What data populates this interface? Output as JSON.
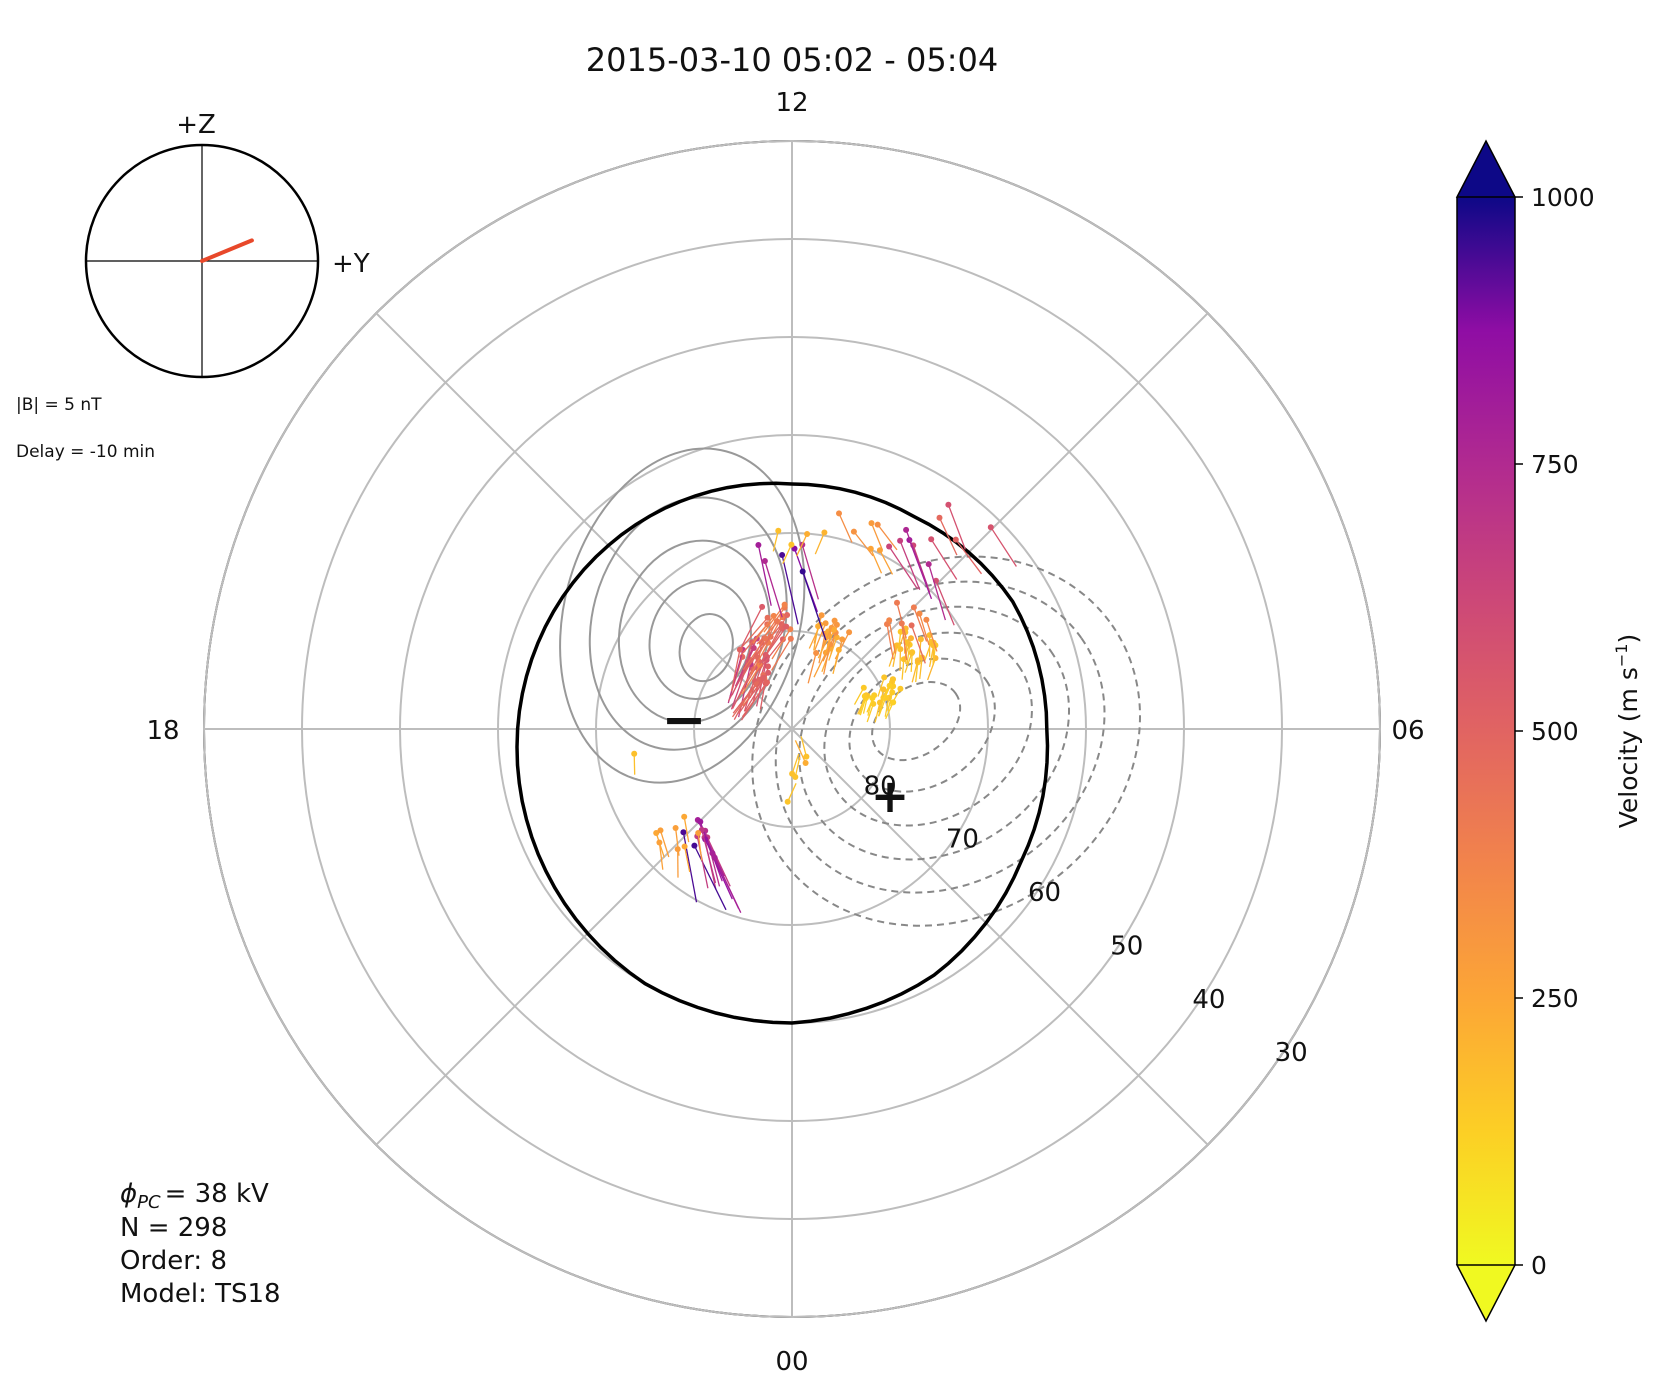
{
  "chart_data": {
    "type": "polar-convection-map",
    "title": "2015-03-10 05:02 - 05:04",
    "mlt_labels": {
      "top": "12",
      "right": "06",
      "bottom": "00",
      "left": "18"
    },
    "latitude_rings": [
      80,
      70,
      60,
      50,
      40,
      30
    ],
    "latitude_range": [
      30,
      90
    ],
    "grid": true,
    "imf_clock": {
      "z_label": "+Z",
      "y_label": "+Y",
      "By": 4.6,
      "Bz": 1.9,
      "vector_color": "#e8482a",
      "magnitude_text": "|B| = 5 nT",
      "delay_text": "Delay = -10 min"
    },
    "stats": {
      "phi_pc_value": "= 38 kV",
      "n_text": "N = 298",
      "order_text": "Order: 8",
      "model_text": "Model: TS18"
    },
    "potential_markers": {
      "min_symbol": "−",
      "min_location": {
        "lat": 79,
        "mlt": 19.0
      },
      "max_symbol": "+",
      "max_location": {
        "lat": 78.5,
        "mlt": 3.2
      }
    },
    "heppner_maynard_boundary_lat": [
      65,
      64,
      63,
      62,
      61,
      60,
      60,
      61,
      63,
      64,
      64,
      65,
      65
    ],
    "heppner_maynard_boundary_mlt": [
      0,
      2,
      4,
      6,
      8,
      10,
      12,
      14,
      16,
      18,
      20,
      22,
      24
    ],
    "colorbar": {
      "label": "Velocity (m s",
      "label_superscript": "−1",
      "label_close": ")",
      "range": [
        0,
        1000
      ],
      "ticks": [
        0,
        250,
        500,
        750,
        1000
      ],
      "colormap": "plasma_r",
      "extend": "both"
    },
    "vector_clusters": [
      {
        "lat": 76,
        "mlt": 9.4,
        "speed": 800,
        "az": 160,
        "n": 12
      },
      {
        "lat": 74,
        "mlt": 8.8,
        "speed": 250,
        "az": 170,
        "n": 8
      },
      {
        "lat": 82,
        "mlt": 1.8,
        "speed": 600,
        "az": 200,
        "n": 18
      },
      {
        "lat": 84,
        "mlt": 2.0,
        "speed": 450,
        "az": 210,
        "n": 10
      },
      {
        "lat": 80,
        "mlt": 19.5,
        "speed": 150,
        "az": 200,
        "n": 22
      },
      {
        "lat": 75,
        "mlt": 20.3,
        "speed": 180,
        "az": 190,
        "n": 22
      },
      {
        "lat": 74,
        "mlt": 21.0,
        "speed": 420,
        "az": 165,
        "n": 8
      },
      {
        "lat": 80,
        "mlt": 22.5,
        "speed": 280,
        "az": 200,
        "n": 20
      },
      {
        "lat": 79,
        "mlt": 0.6,
        "speed": 450,
        "az": 215,
        "n": 20
      },
      {
        "lat": 67,
        "mlt": 21.6,
        "speed": 700,
        "az": 155,
        "n": 8
      },
      {
        "lat": 69,
        "mlt": 22.8,
        "speed": 300,
        "az": 150,
        "n": 6
      },
      {
        "lat": 72,
        "mlt": 0.2,
        "speed": 850,
        "az": 170,
        "n": 6
      },
      {
        "lat": 70,
        "mlt": 23.8,
        "speed": 200,
        "az": 200,
        "n": 4
      },
      {
        "lat": 63,
        "mlt": 21.2,
        "speed": 550,
        "az": 150,
        "n": 4
      },
      {
        "lat": 84,
        "mlt": 12.0,
        "speed": 150,
        "az": 20,
        "n": 3
      },
      {
        "lat": 86,
        "mlt": 13.8,
        "speed": 200,
        "az": 340,
        "n": 2
      },
      {
        "lat": 72,
        "mlt": 6.7,
        "speed": 150,
        "az": 180,
        "n": 1
      }
    ]
  }
}
